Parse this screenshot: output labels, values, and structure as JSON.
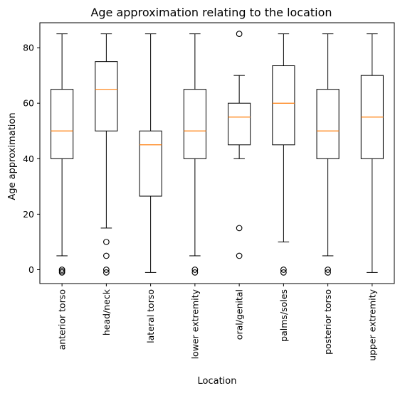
{
  "chart_data": {
    "type": "box",
    "title": "Age approximation relating to the location",
    "xlabel": "Location",
    "ylabel": "Age approximation",
    "ylim": [
      -5,
      89
    ],
    "yticks": [
      0,
      20,
      40,
      60,
      80
    ],
    "grid": false,
    "colors": {
      "box": "#000000",
      "median": "#ff7f0e",
      "background": "#ffffff"
    },
    "categories": [
      "anterior torso",
      "head/neck",
      "lateral torso",
      "lower extremity",
      "oral/genital",
      "palms/soles",
      "posterior torso",
      "upper extremity"
    ],
    "boxes": [
      {
        "whislo": 5,
        "q1": 40,
        "med": 50,
        "q3": 65,
        "whishi": 85,
        "fliers": [
          0,
          -0.5,
          -1
        ]
      },
      {
        "whislo": 15,
        "q1": 50,
        "med": 65,
        "q3": 75,
        "whishi": 85,
        "fliers": [
          10,
          5,
          0,
          -1
        ]
      },
      {
        "whislo": -1,
        "q1": 26.5,
        "med": 45,
        "q3": 50,
        "whishi": 85,
        "fliers": []
      },
      {
        "whislo": 5,
        "q1": 40,
        "med": 50,
        "q3": 65,
        "whishi": 85,
        "fliers": [
          0,
          -1
        ]
      },
      {
        "whislo": 40,
        "q1": 45,
        "med": 55,
        "q3": 60,
        "whishi": 70,
        "fliers": [
          85,
          15,
          5
        ]
      },
      {
        "whislo": 10,
        "q1": 45,
        "med": 60,
        "q3": 73.5,
        "whishi": 85,
        "fliers": [
          0,
          -1
        ]
      },
      {
        "whislo": 5,
        "q1": 40,
        "med": 50,
        "q3": 65,
        "whishi": 85,
        "fliers": [
          0,
          -1
        ]
      },
      {
        "whislo": -1,
        "q1": 40,
        "med": 55,
        "q3": 70,
        "whishi": 85,
        "fliers": []
      }
    ]
  }
}
